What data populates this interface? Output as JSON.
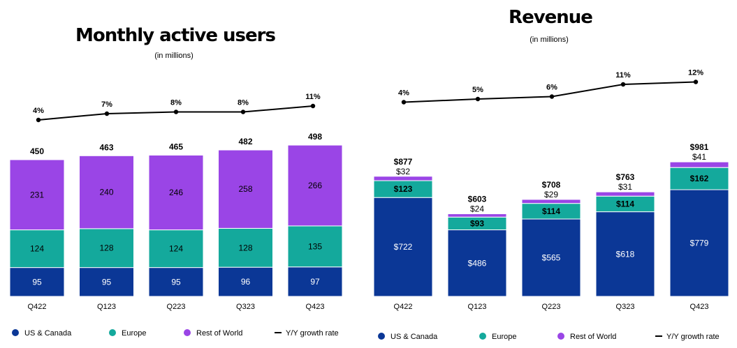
{
  "colors": {
    "us": "#0b3796",
    "eu": "#14a99c",
    "row": "#9a45e6",
    "line": "#000000"
  },
  "chart_data": [
    {
      "type": "bar",
      "stacked": true,
      "title": "Monthly active users",
      "subtitle": "(in millions)",
      "categories": [
        "Q422",
        "Q123",
        "Q223",
        "Q323",
        "Q423"
      ],
      "series": [
        {
          "name": "US & Canada",
          "values": [
            95,
            95,
            95,
            96,
            97
          ],
          "labels": [
            "95",
            "95",
            "95",
            "96",
            "97"
          ]
        },
        {
          "name": "Europe",
          "values": [
            124,
            128,
            124,
            128,
            135
          ],
          "labels": [
            "124",
            "128",
            "124",
            "128",
            "135"
          ]
        },
        {
          "name": "Rest of World",
          "values": [
            231,
            240,
            246,
            258,
            266
          ],
          "labels": [
            "231",
            "240",
            "246",
            "258",
            "266"
          ]
        }
      ],
      "totals": [
        "450",
        "463",
        "465",
        "482",
        "498"
      ],
      "growth": {
        "name": "Y/Y growth rate",
        "values": [
          4,
          7,
          8,
          8,
          11
        ],
        "labels": [
          "4%",
          "7%",
          "8%",
          "8%",
          "11%"
        ]
      }
    },
    {
      "type": "bar",
      "stacked": true,
      "title": "Revenue",
      "subtitle": "(in millions)",
      "categories": [
        "Q422",
        "Q123",
        "Q223",
        "Q323",
        "Q423"
      ],
      "series": [
        {
          "name": "US & Canada",
          "values": [
            722,
            486,
            565,
            618,
            779
          ],
          "labels": [
            "$722",
            "$486",
            "$565",
            "$618",
            "$779"
          ]
        },
        {
          "name": "Europe",
          "values": [
            123,
            93,
            114,
            114,
            162
          ],
          "labels": [
            "$123",
            "$93",
            "$114",
            "$114",
            "$162"
          ]
        },
        {
          "name": "Rest of World",
          "values": [
            32,
            24,
            29,
            31,
            41
          ],
          "labels": [
            "$32",
            "$24",
            "$29",
            "$31",
            "$41"
          ]
        }
      ],
      "totals": [
        "$877",
        "$603",
        "$708",
        "$763",
        "$981"
      ],
      "growth": {
        "name": "Y/Y growth rate",
        "values": [
          4,
          5,
          6,
          11,
          12
        ],
        "labels": [
          "4%",
          "5%",
          "6%",
          "11%",
          "12%"
        ]
      }
    }
  ]
}
